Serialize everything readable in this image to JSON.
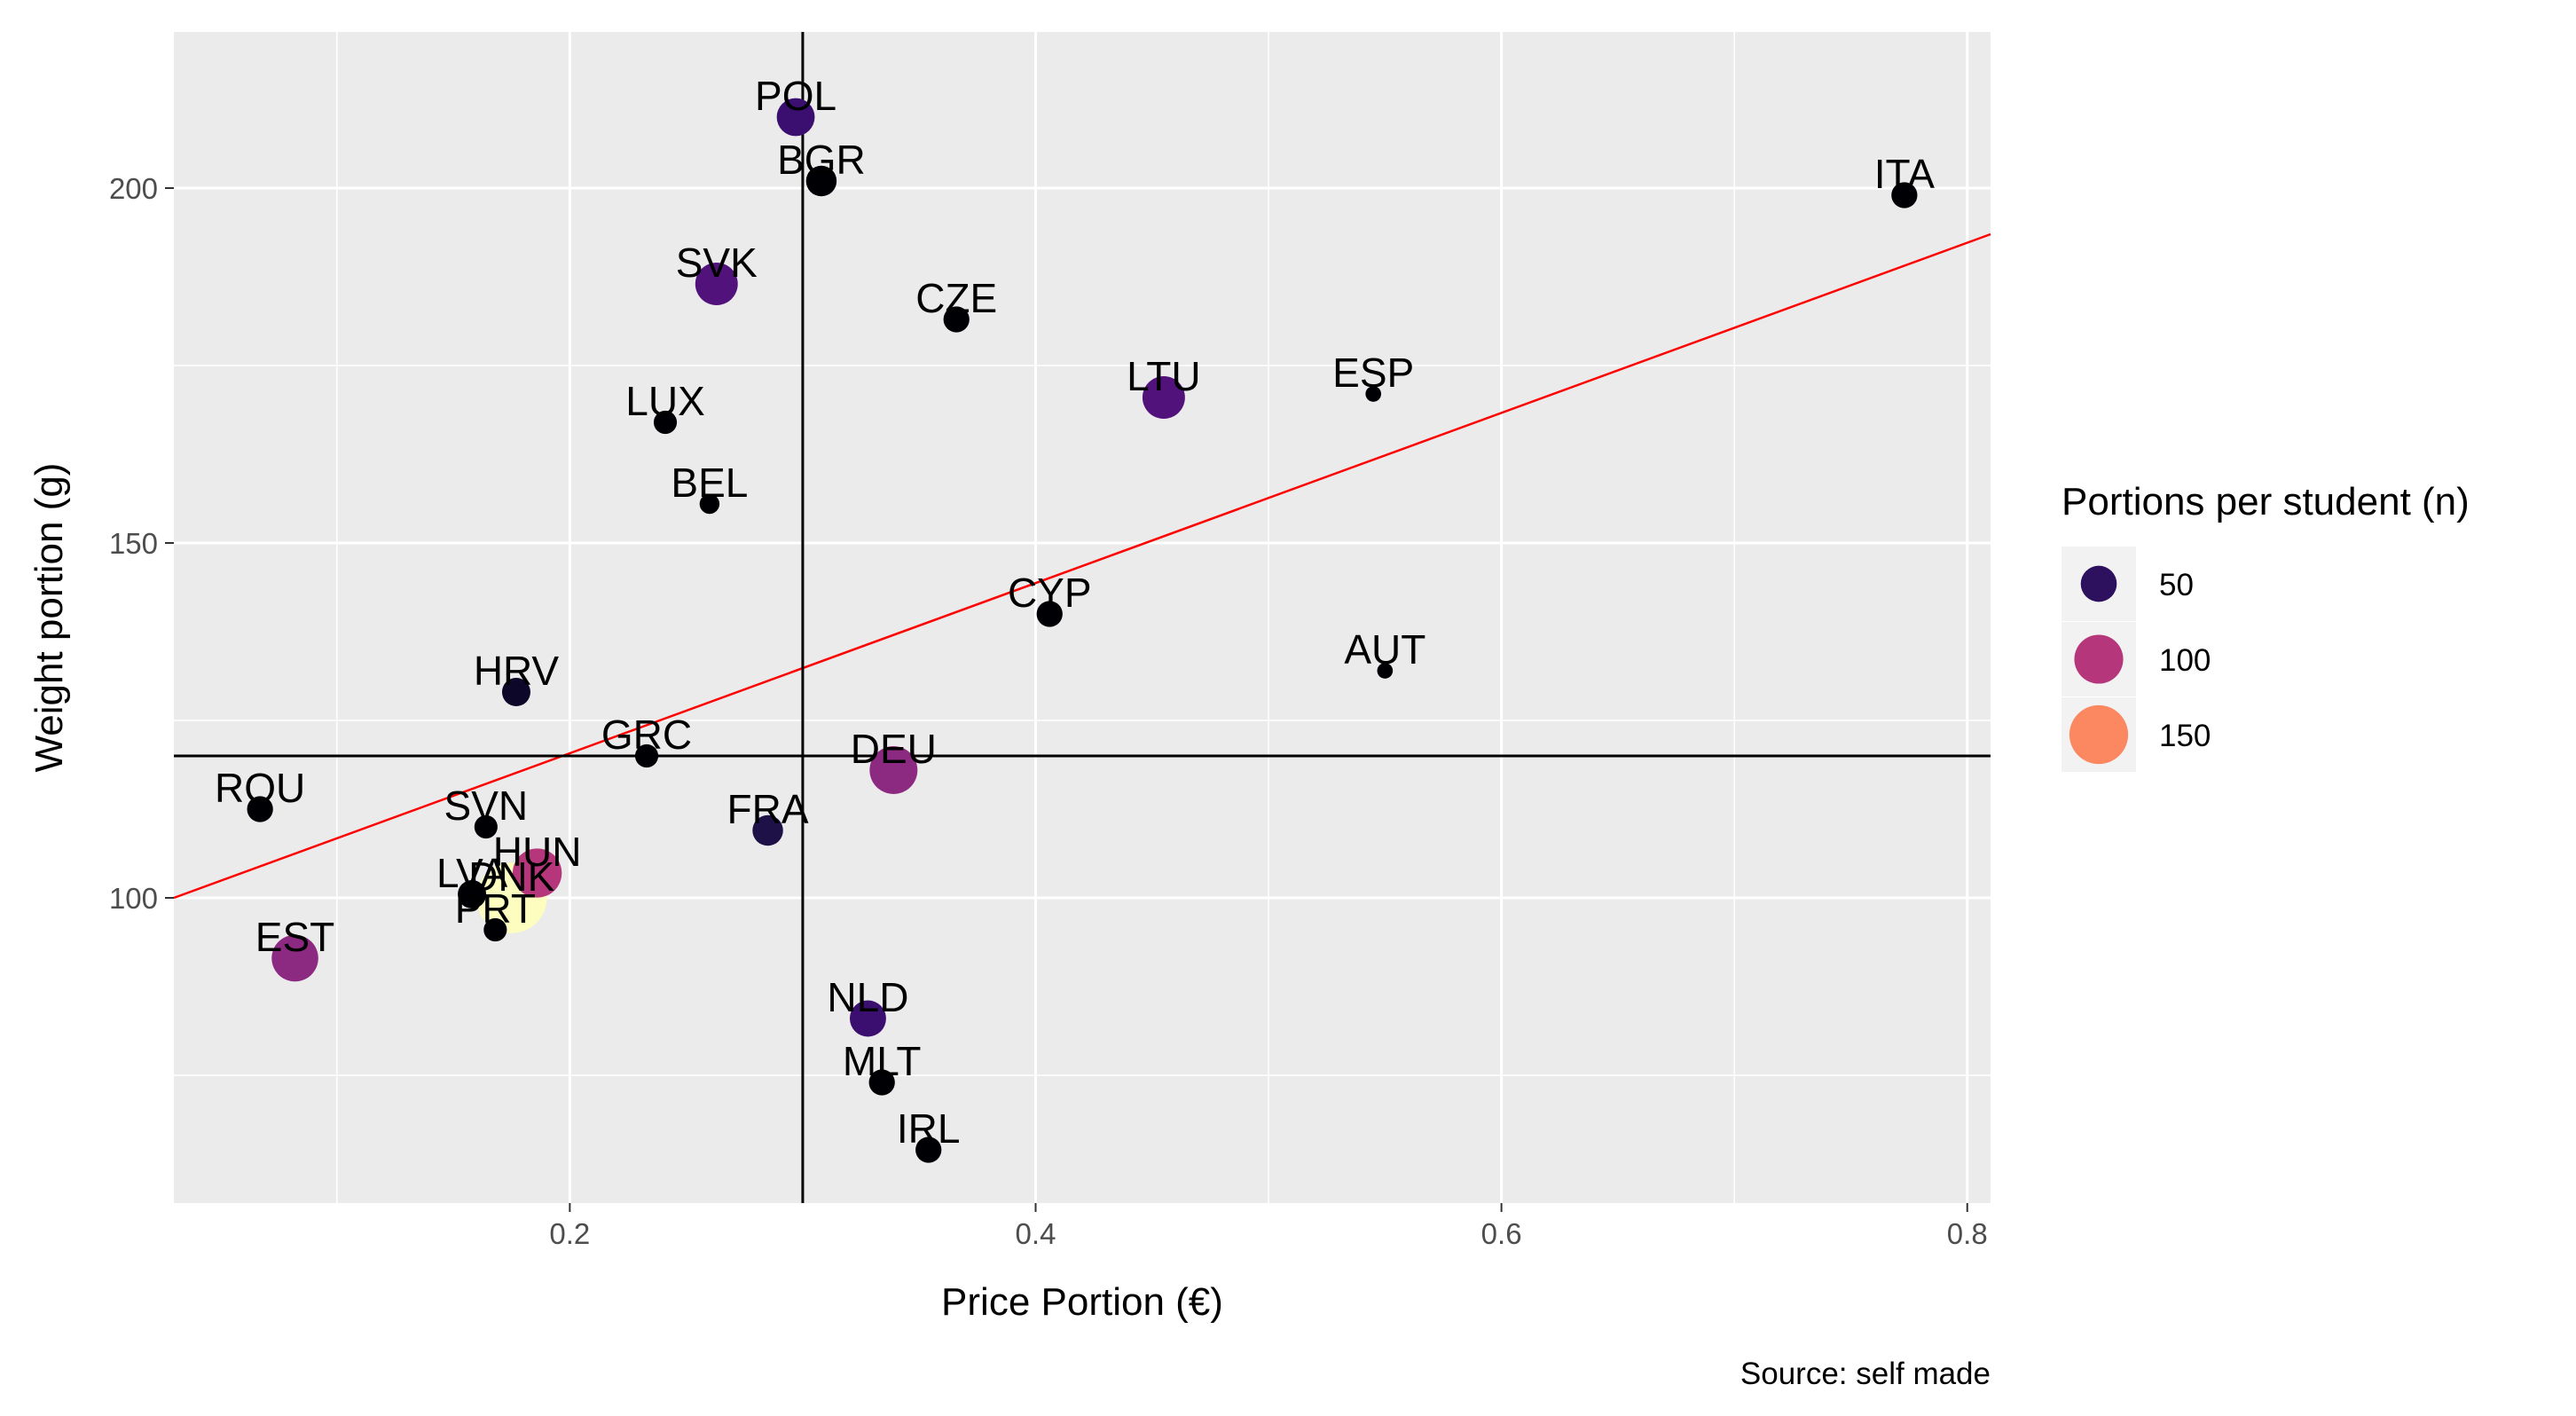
{
  "chart_data": {
    "type": "scatter",
    "xlabel": "Price Portion (€)",
    "ylabel": "Weight portion (g)",
    "caption": "Source: self made",
    "xlim": [
      0.03,
      0.81
    ],
    "ylim": [
      57,
      222
    ],
    "x_ticks": [
      0.2,
      0.4,
      0.6,
      0.8
    ],
    "x_tick_labels": [
      "0.2",
      "0.4",
      "0.6",
      "0.8"
    ],
    "y_ticks": [
      100,
      150,
      200
    ],
    "y_tick_labels": [
      "100",
      "150",
      "200"
    ],
    "grid": true,
    "reference_lines": {
      "x": 0.3,
      "y": 120,
      "color": "#000000"
    },
    "trend_line": {
      "color": "#ff0000",
      "x0": 0.03,
      "y0": 100,
      "x1": 0.81,
      "y1": 193.5
    },
    "legend": {
      "title": "Portions per student (n)",
      "position": "right",
      "entries": [
        {
          "label": "50",
          "n": 50,
          "color": "#2d115f"
        },
        {
          "label": "100",
          "n": 100,
          "color": "#b5367a"
        },
        {
          "label": "150",
          "n": 150,
          "color": "#fb8861"
        }
      ]
    },
    "points": [
      {
        "label": "POL",
        "x": 0.297,
        "y": 210,
        "n": 50,
        "color": "#3b0f70"
      },
      {
        "label": "BGR",
        "x": 0.308,
        "y": 201,
        "n": 30,
        "color": "#000004"
      },
      {
        "label": "ITA",
        "x": 0.773,
        "y": 199,
        "n": 20,
        "color": "#000004"
      },
      {
        "label": "SVK",
        "x": 0.263,
        "y": 186.5,
        "n": 65,
        "color": "#51127c"
      },
      {
        "label": "CZE",
        "x": 0.366,
        "y": 181.5,
        "n": 20,
        "color": "#000004"
      },
      {
        "label": "LTU",
        "x": 0.455,
        "y": 170.5,
        "n": 65,
        "color": "#51127c"
      },
      {
        "label": "ESP",
        "x": 0.545,
        "y": 171,
        "n": 5,
        "color": "#000004"
      },
      {
        "label": "LUX",
        "x": 0.241,
        "y": 167,
        "n": 15,
        "color": "#000004"
      },
      {
        "label": "BEL",
        "x": 0.26,
        "y": 155.5,
        "n": 10,
        "color": "#000004"
      },
      {
        "label": "CYP",
        "x": 0.406,
        "y": 140,
        "n": 20,
        "color": "#000004"
      },
      {
        "label": "AUT",
        "x": 0.55,
        "y": 132,
        "n": 5,
        "color": "#000004"
      },
      {
        "label": "HRV",
        "x": 0.177,
        "y": 129,
        "n": 25,
        "color": "#0d0829"
      },
      {
        "label": "GRC",
        "x": 0.233,
        "y": 120,
        "n": 15,
        "color": "#000004"
      },
      {
        "label": "DEU",
        "x": 0.339,
        "y": 118,
        "n": 85,
        "color": "#8c2981"
      },
      {
        "label": "ROU",
        "x": 0.067,
        "y": 112.5,
        "n": 20,
        "color": "#000004"
      },
      {
        "label": "SVN",
        "x": 0.164,
        "y": 110,
        "n": 15,
        "color": "#000004"
      },
      {
        "label": "FRA",
        "x": 0.285,
        "y": 109.5,
        "n": 30,
        "color": "#1d1147"
      },
      {
        "label": "HUN",
        "x": 0.186,
        "y": 103.5,
        "n": 90,
        "color": "#b5367a"
      },
      {
        "label": "LVA",
        "x": 0.158,
        "y": 100.5,
        "n": 25,
        "color": "#000004"
      },
      {
        "label": "DNK",
        "x": 0.175,
        "y": 100,
        "n": 200,
        "color": "#fcfdbf"
      },
      {
        "label": "PRT",
        "x": 0.168,
        "y": 95.5,
        "n": 15,
        "color": "#000004"
      },
      {
        "label": "EST",
        "x": 0.082,
        "y": 91.5,
        "n": 80,
        "color": "#8c2981"
      },
      {
        "label": "NLD",
        "x": 0.328,
        "y": 83,
        "n": 45,
        "color": "#3b0f70"
      },
      {
        "label": "MLT",
        "x": 0.334,
        "y": 74,
        "n": 20,
        "color": "#000004"
      },
      {
        "label": "IRL",
        "x": 0.354,
        "y": 64.5,
        "n": 20,
        "color": "#000004"
      }
    ]
  }
}
